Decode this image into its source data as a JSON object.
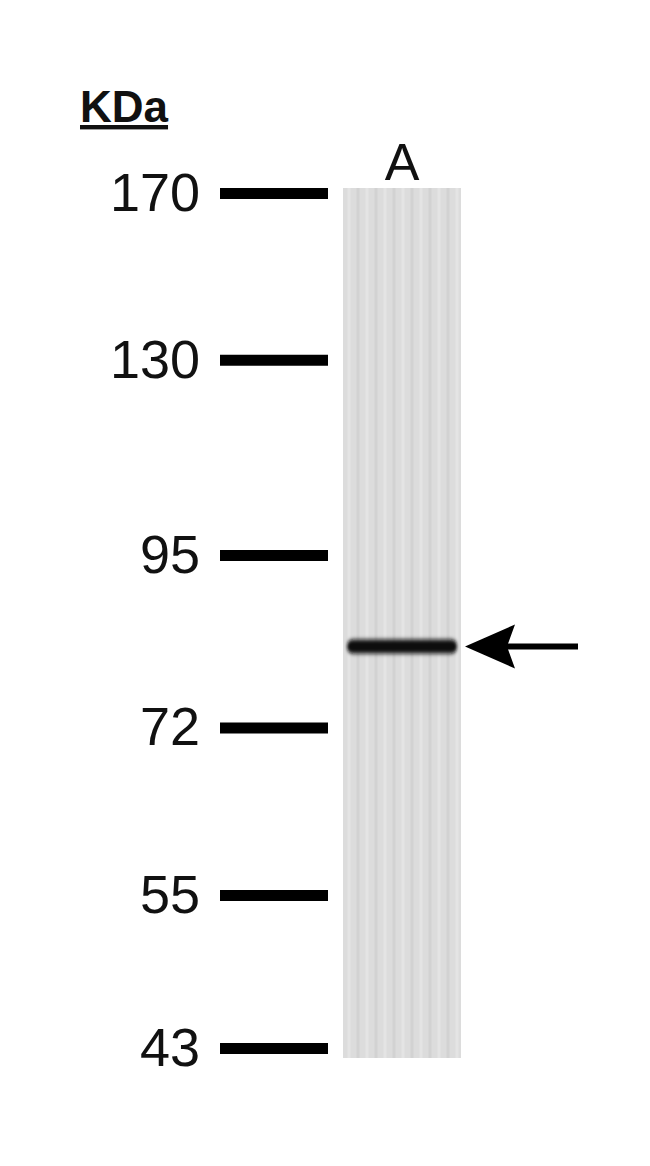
{
  "chart_data": {
    "type": "western_blot",
    "y_label": "KDa",
    "categories": [
      "A"
    ],
    "values": [
      82
    ],
    "log": "y",
    "ylim": [
      43,
      170
    ],
    "yticks": [
      170,
      130,
      95,
      72,
      55,
      43
    ],
    "color": "#111111"
  }
}
